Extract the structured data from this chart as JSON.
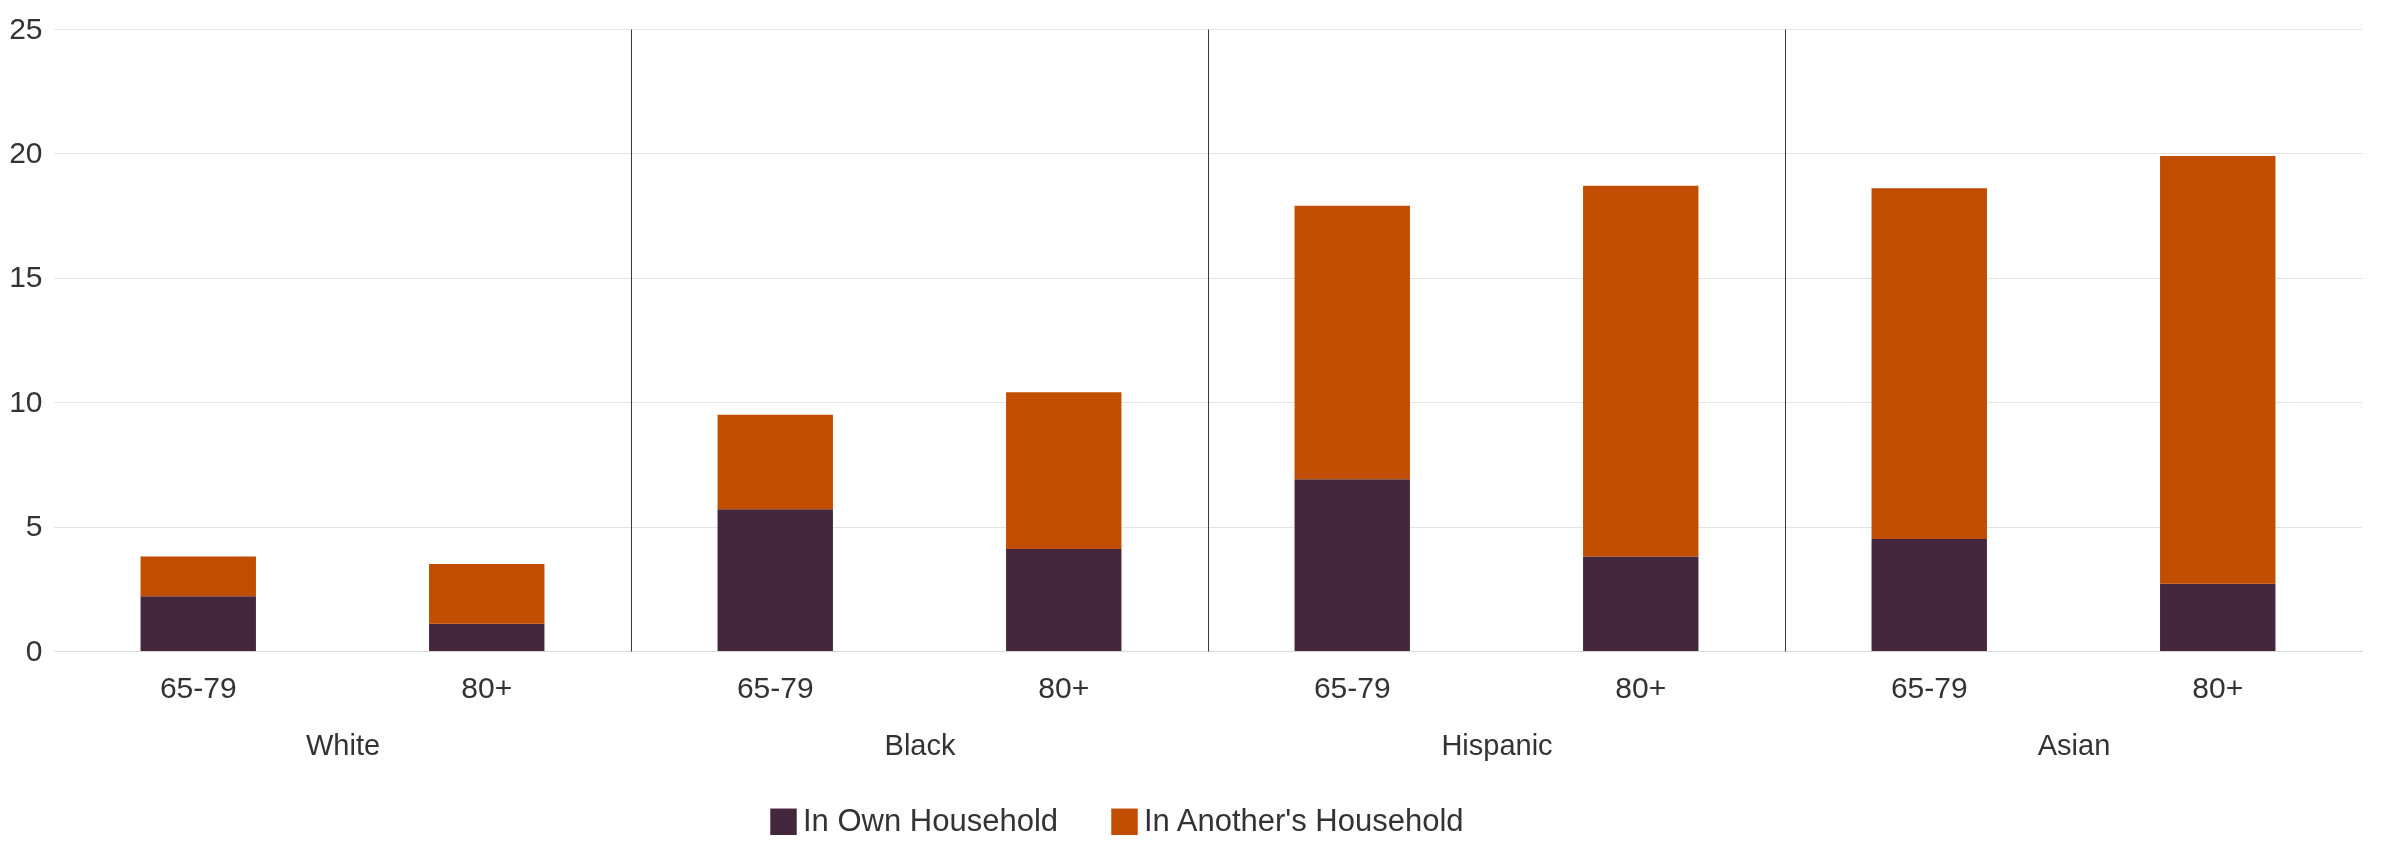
{
  "chart_data": [
    {
      "type": "bar",
      "stacked": true,
      "xlabel": "White",
      "categories": [
        "65-79",
        "80+"
      ],
      "ylim": [
        0,
        25
      ],
      "yticks": [
        0,
        5,
        10,
        15,
        20,
        25
      ],
      "grid": "y",
      "legend": "bottom",
      "series": [
        {
          "name": "In Own Household",
          "color": "#45273d",
          "values": [
            2.2,
            1.1
          ]
        },
        {
          "name": "In Another's Household",
          "color": "#c04d00",
          "values": [
            1.6,
            2.4
          ]
        }
      ]
    },
    {
      "type": "bar",
      "stacked": true,
      "xlabel": "Black",
      "categories": [
        "65-79",
        "80+"
      ],
      "ylim": [
        0,
        25
      ],
      "yticks": [
        0,
        5,
        10,
        15,
        20,
        25
      ],
      "grid": "y",
      "legend": "bottom",
      "tick_labels": "x",
      "series": [
        {
          "name": "In Own Household",
          "values": [
            5.7,
            4.1
          ]
        },
        {
          "name": "In Another's Household",
          "values": [
            3.8,
            6.3
          ]
        }
      ]
    },
    {
      "type": "bar",
      "stacked": true,
      "xlabel": "Hispanic",
      "categories": [
        "65-79",
        "80+"
      ],
      "ylim": [
        0,
        25
      ],
      "yticks": [
        0,
        5,
        10,
        15,
        20,
        25
      ],
      "grid": "y",
      "legend": "bottom",
      "tick_labels": "x",
      "series": [
        {
          "name": "In Own Household",
          "values": [
            6.9,
            3.8
          ]
        },
        {
          "name": "In Another's Household",
          "values": [
            11.0,
            14.9
          ]
        }
      ]
    },
    {
      "type": "bar",
      "stacked": true,
      "xlabel": "Asian",
      "categories": [
        "65-79",
        "80+"
      ],
      "ylim": [
        0,
        25
      ],
      "yticks": [
        0,
        5,
        10,
        15,
        20,
        25
      ],
      "grid": "y",
      "legend": "bottom",
      "tick_labels": "x",
      "series": [
        {
          "name": "In Own Household",
          "values": [
            4.5,
            2.7
          ]
        },
        {
          "name": "In Another's Household",
          "values": [
            14.1,
            17.2
          ]
        }
      ]
    }
  ]
}
